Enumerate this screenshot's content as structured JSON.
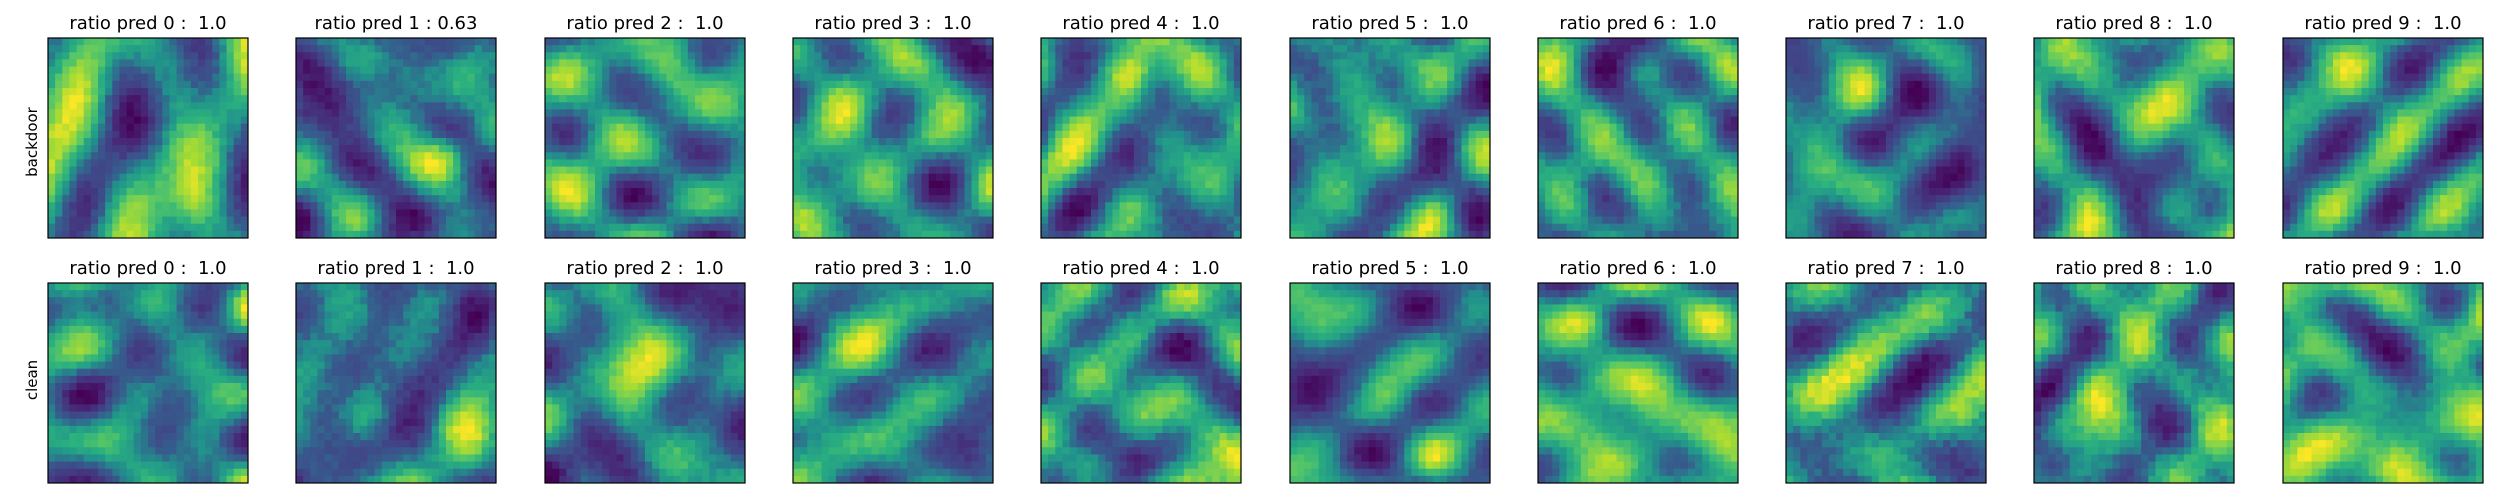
{
  "chart_data": {
    "type": "heatmap",
    "colormap": "viridis",
    "grid": false,
    "axes_ticks": "none",
    "rows": [
      {
        "label": "backdoor",
        "panels": [
          {
            "title": "ratio pred 0 :  1.0"
          },
          {
            "title": "ratio pred 1 : 0.63"
          },
          {
            "title": "ratio pred 2 :  1.0"
          },
          {
            "title": "ratio pred 3 :  1.0"
          },
          {
            "title": "ratio pred 4 :  1.0"
          },
          {
            "title": "ratio pred 5 :  1.0"
          },
          {
            "title": "ratio pred 6 :  1.0"
          },
          {
            "title": "ratio pred 7 :  1.0"
          },
          {
            "title": "ratio pred 8 :  1.0"
          },
          {
            "title": "ratio pred 9 :  1.0"
          }
        ]
      },
      {
        "label": "clean",
        "panels": [
          {
            "title": "ratio pred 0 :  1.0"
          },
          {
            "title": "ratio pred 1 :  1.0"
          },
          {
            "title": "ratio pred 2 :  1.0"
          },
          {
            "title": "ratio pred 3 :  1.0"
          },
          {
            "title": "ratio pred 4 :  1.0"
          },
          {
            "title": "ratio pred 5 :  1.0"
          },
          {
            "title": "ratio pred 6 :  1.0"
          },
          {
            "title": "ratio pred 7 :  1.0"
          },
          {
            "title": "ratio pred 8 :  1.0"
          },
          {
            "title": "ratio pred 9 :  1.0"
          }
        ]
      }
    ]
  }
}
